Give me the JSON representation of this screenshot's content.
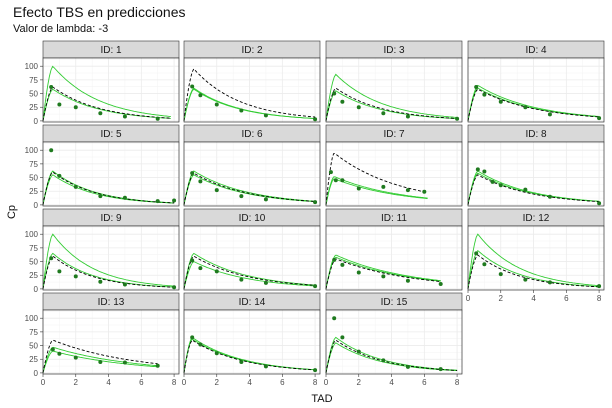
{
  "figure": {
    "title": "Efecto TBS en predicciones",
    "subtitle": "Valor de lambda: -3",
    "colors": {
      "panel_bg": "#ffffff",
      "grid": "#ebebeb",
      "border": "#333333",
      "strip_bg": "#d9d9d9",
      "obs_point": "#1f7a1f",
      "pred_green": "#33cc33",
      "pred_dashed": "#000000"
    }
  },
  "chart_data": {
    "type": "line",
    "facet_strip_prefix": "ID: ",
    "xlabel": "TAD",
    "ylabel": "Cp",
    "xlim": [
      0,
      8.3
    ],
    "ylim": [
      -2,
      115
    ],
    "xticks": [
      0,
      2,
      4,
      6,
      8
    ],
    "yticks": [
      0,
      25,
      50,
      75,
      100
    ],
    "grid": true,
    "legend": "none",
    "panels": [
      {
        "id": 1,
        "cmax": [
          100,
          58,
          62
        ],
        "tmax": 0.6,
        "k": 0.35,
        "xend": 7.8,
        "points": [
          [
            0.5,
            62
          ],
          [
            1,
            30
          ],
          [
            2,
            25
          ],
          [
            3.5,
            14
          ],
          [
            5,
            8
          ],
          [
            7,
            4
          ]
        ]
      },
      {
        "id": 2,
        "cmax": [
          60,
          58,
          95
        ],
        "tmax": 0.6,
        "k": 0.35,
        "xend": 8,
        "points": [
          [
            0.5,
            63
          ],
          [
            1,
            47
          ],
          [
            2,
            30
          ],
          [
            3.5,
            19
          ],
          [
            5,
            10
          ],
          [
            8,
            3
          ]
        ]
      },
      {
        "id": 3,
        "cmax": [
          85,
          55,
          60
        ],
        "tmax": 0.6,
        "k": 0.35,
        "xend": 8,
        "points": [
          [
            0.5,
            50
          ],
          [
            1,
            35
          ],
          [
            2,
            25
          ],
          [
            3.5,
            14
          ],
          [
            5,
            8
          ],
          [
            8,
            4
          ]
        ]
      },
      {
        "id": 4,
        "cmax": [
          65,
          60,
          58
        ],
        "tmax": 0.6,
        "k": 0.28,
        "xend": 8,
        "points": [
          [
            0.5,
            62
          ],
          [
            1,
            48
          ],
          [
            2,
            35
          ],
          [
            3.5,
            25
          ],
          [
            5,
            12
          ],
          [
            8,
            5
          ]
        ]
      },
      {
        "id": 5,
        "cmax": [
          62,
          55,
          60
        ],
        "tmax": 0.6,
        "k": 0.38,
        "xend": 8,
        "points": [
          [
            0.5,
            100
          ],
          [
            1,
            53
          ],
          [
            2,
            33
          ],
          [
            3.5,
            16
          ],
          [
            5,
            13
          ],
          [
            7,
            7
          ],
          [
            8,
            8
          ]
        ]
      },
      {
        "id": 6,
        "cmax": [
          62,
          55,
          58
        ],
        "tmax": 0.6,
        "k": 0.3,
        "xend": 8,
        "points": [
          [
            0.5,
            58
          ],
          [
            1,
            43
          ],
          [
            2,
            27
          ],
          [
            3.5,
            16
          ],
          [
            5,
            10
          ],
          [
            8,
            5
          ]
        ]
      },
      {
        "id": 7,
        "cmax": [
          52,
          48,
          95
        ],
        "tmax": 0.5,
        "k": 0.25,
        "xend": 6.2,
        "points": [
          [
            0.3,
            60
          ],
          [
            0.6,
            45
          ],
          [
            1,
            45
          ],
          [
            2,
            30
          ],
          [
            3.5,
            33
          ],
          [
            5,
            27
          ],
          [
            6,
            24
          ]
        ]
      },
      {
        "id": 8,
        "cmax": [
          62,
          58,
          55
        ],
        "tmax": 0.6,
        "k": 0.3,
        "xend": 8,
        "points": [
          [
            0.6,
            65
          ],
          [
            1,
            61
          ],
          [
            1.5,
            42
          ],
          [
            2,
            36
          ],
          [
            3.5,
            28
          ],
          [
            5,
            15
          ],
          [
            8,
            3
          ]
        ]
      },
      {
        "id": 9,
        "cmax": [
          100,
          65,
          60
        ],
        "tmax": 0.6,
        "k": 0.4,
        "xend": 8,
        "points": [
          [
            0.5,
            56
          ],
          [
            1,
            32
          ],
          [
            2,
            23
          ],
          [
            3.5,
            13
          ],
          [
            5,
            8
          ],
          [
            8,
            3
          ]
        ]
      },
      {
        "id": 10,
        "cmax": [
          65,
          50,
          60
        ],
        "tmax": 0.6,
        "k": 0.3,
        "xend": 8,
        "points": [
          [
            0.5,
            52
          ],
          [
            1,
            38
          ],
          [
            2,
            32
          ],
          [
            3.5,
            17
          ],
          [
            5,
            11
          ],
          [
            8,
            5
          ]
        ]
      },
      {
        "id": 11,
        "cmax": [
          62,
          58,
          55
        ],
        "tmax": 0.6,
        "k": 0.22,
        "xend": 7,
        "points": [
          [
            0.5,
            53
          ],
          [
            1,
            44
          ],
          [
            2,
            30
          ],
          [
            3.5,
            23
          ],
          [
            5,
            15
          ],
          [
            7,
            9
          ]
        ]
      },
      {
        "id": 12,
        "cmax": [
          100,
          70,
          62
        ],
        "tmax": 0.6,
        "k": 0.38,
        "xend": 8,
        "points": [
          [
            0.5,
            65
          ],
          [
            1,
            45
          ],
          [
            2,
            27
          ],
          [
            3.5,
            17
          ],
          [
            5,
            12
          ],
          [
            8,
            5
          ]
        ]
      },
      {
        "id": 13,
        "cmax": [
          47,
          40,
          60
        ],
        "tmax": 0.6,
        "k": 0.2,
        "xend": 7,
        "points": [
          [
            0.6,
            43
          ],
          [
            1,
            35
          ],
          [
            2,
            28
          ],
          [
            3.5,
            20
          ],
          [
            5,
            19
          ],
          [
            7,
            13
          ]
        ]
      },
      {
        "id": 14,
        "cmax": [
          65,
          62,
          60
        ],
        "tmax": 0.5,
        "k": 0.32,
        "xend": 8,
        "points": [
          [
            0.5,
            65
          ],
          [
            1,
            52
          ],
          [
            2,
            36
          ],
          [
            3.5,
            20
          ],
          [
            5,
            12
          ],
          [
            8,
            5
          ]
        ]
      },
      {
        "id": 15,
        "cmax": [
          65,
          55,
          60
        ],
        "tmax": 0.6,
        "k": 0.35,
        "xend": 8,
        "points": [
          [
            0.5,
            100
          ],
          [
            1,
            65
          ],
          [
            2,
            39
          ],
          [
            3.5,
            23
          ],
          [
            5,
            11
          ],
          [
            7,
            7
          ]
        ]
      }
    ]
  }
}
